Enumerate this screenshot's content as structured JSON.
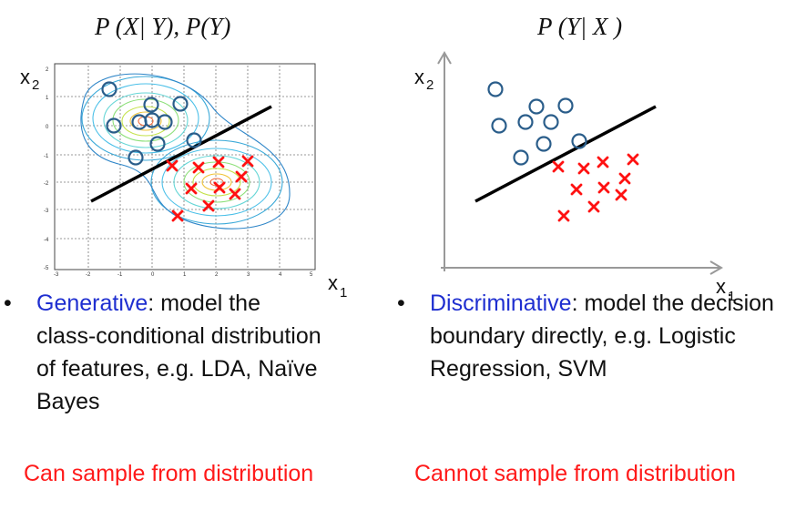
{
  "left_panel": {
    "formula": "P (X| Y), P(Y)",
    "x_axis_label": "x",
    "x_axis_sub": "1",
    "y_axis_label": "x",
    "y_axis_sub": "2",
    "x_ticks": [
      "-3",
      "-2",
      "-1",
      "0",
      "1",
      "2",
      "3",
      "4",
      "5"
    ],
    "y_ticks": [
      "2",
      "1",
      "0",
      "-1",
      "-2",
      "-3",
      "-4",
      "-5"
    ],
    "bullet": "•",
    "term": "Generative",
    "description": ": model the class-conditional distribution of features, e.g. LDA, Naïve Bayes",
    "footer": "Can sample from distribution"
  },
  "right_panel": {
    "formula": "P (Y| X )",
    "x_axis_label": "x",
    "x_axis_sub": "1",
    "y_axis_label": "x",
    "y_axis_sub": "2",
    "bullet": "•",
    "term": "Discriminative",
    "description": ": model the decision boundary directly, e.g. Logistic Regression, SVM",
    "footer": "Cannot sample from distribution"
  },
  "colors": {
    "circle_class": "#2a5d8a",
    "cross_class": "#ff1111",
    "term": "#1f2fd0",
    "footer": "#ff1a1a",
    "boundary": "#000000"
  },
  "markers": {
    "circle": "circle-marker",
    "cross": "cross-marker"
  }
}
